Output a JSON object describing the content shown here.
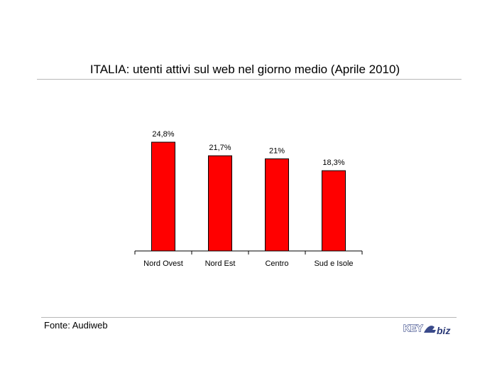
{
  "chart_data": {
    "type": "bar",
    "title": "ITALIA: utenti attivi sul web nel giorno medio (Aprile 2010)",
    "categories": [
      "Nord Ovest",
      "Nord Est",
      "Centro",
      "Sud e Isole"
    ],
    "values": [
      24.8,
      21.7,
      21,
      18.3
    ],
    "data_labels": [
      "24,8%",
      "21,7%",
      "21%",
      "18,3%"
    ],
    "xlabel": "",
    "ylabel": "",
    "ylim": [
      0,
      24.8
    ],
    "grid": false,
    "legend": "none",
    "bar_color": "#ff0000"
  },
  "source": "Fonte: Audiweb",
  "logo": {
    "left_text": "KEY",
    "right_text": "biz"
  }
}
